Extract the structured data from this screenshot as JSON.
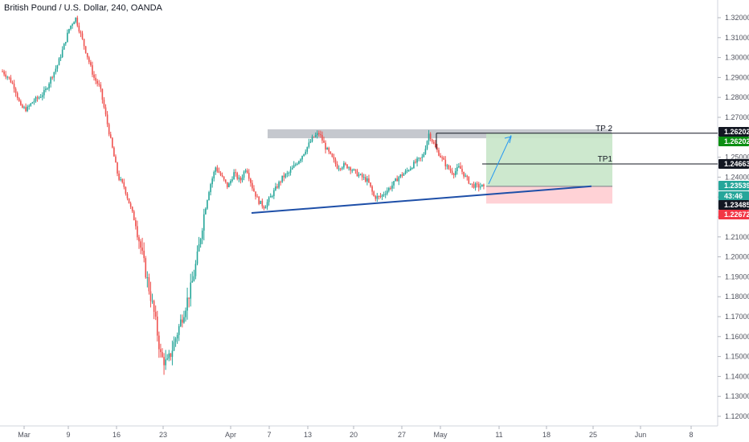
{
  "chart_data": {
    "type": "candlestick",
    "title": "British Pound / U.S. Dollar, 240, OANDA",
    "ylim": [
      1.115,
      1.325
    ],
    "y_ticks": [
      "1.32000",
      "1.31000",
      "1.30000",
      "1.29000",
      "1.28000",
      "1.27000",
      "1.26000",
      "1.25000",
      "1.24000",
      "1.23000",
      "1.22000",
      "1.21000",
      "1.20000",
      "1.19000",
      "1.18000",
      "1.17000",
      "1.16000",
      "1.15000",
      "1.14000",
      "1.13000",
      "1.12000"
    ],
    "x_ticks": [
      "Mar",
      "9",
      "16",
      "23",
      "Apr",
      "7",
      "13",
      "20",
      "27",
      "May",
      "11",
      "18",
      "25",
      "Jun",
      "8"
    ],
    "grid": false,
    "colors": {
      "up": "#26a69a",
      "down": "#ef5350",
      "trendline": "#1e4fa8",
      "resistance_zone": "#b2b5be",
      "target_zone": "#c8e6c9",
      "stop_zone": "#ffcdd2"
    },
    "price_path": [
      [
        1.293,
        1.29
      ],
      [
        1.285,
        1.275
      ],
      [
        1.274,
        1.278
      ],
      [
        1.28,
        1.283
      ],
      [
        1.29,
        1.296
      ],
      [
        1.305,
        1.315
      ],
      [
        1.32,
        1.31
      ],
      [
        1.3,
        1.29
      ],
      [
        1.285,
        1.27
      ],
      [
        1.255,
        1.24
      ],
      [
        1.235,
        1.225
      ],
      [
        1.215,
        1.2
      ],
      [
        1.185,
        1.17
      ],
      [
        1.15,
        1.146
      ],
      [
        1.155,
        1.165
      ],
      [
        1.175,
        1.185
      ],
      [
        1.2,
        1.22
      ],
      [
        1.235,
        1.245
      ],
      [
        1.24,
        1.235
      ],
      [
        1.242,
        1.238
      ],
      [
        1.245,
        1.235
      ],
      [
        1.228,
        1.225
      ],
      [
        1.23,
        1.235
      ],
      [
        1.24,
        1.242
      ],
      [
        1.246,
        1.25
      ],
      [
        1.255,
        1.26
      ],
      [
        1.262,
        1.255
      ],
      [
        1.25,
        1.245
      ],
      [
        1.246,
        1.245
      ],
      [
        1.242,
        1.24
      ],
      [
        1.238,
        1.23
      ],
      [
        1.23,
        1.233
      ],
      [
        1.236,
        1.24
      ],
      [
        1.242,
        1.245
      ],
      [
        1.248,
        1.25
      ],
      [
        1.262,
        1.255
      ],
      [
        1.25,
        1.245
      ],
      [
        1.242,
        1.245
      ],
      [
        1.24,
        1.236
      ],
      [
        1.2354,
        1.2354
      ]
    ],
    "lines": [
      {
        "name": "TP 2",
        "value": 1.26202
      },
      {
        "name": "TP1",
        "value": 1.24663
      }
    ],
    "price_badges": [
      {
        "label": "1.26202",
        "value": 1.26202,
        "color": "#131722"
      },
      {
        "label": "1.26202",
        "value": 1.26202,
        "color": "#0b8f12"
      },
      {
        "label": "1.24663",
        "value": 1.24663,
        "color": "#131722"
      },
      {
        "label": "1.23539",
        "value": 1.23539,
        "color": "#26a69a"
      },
      {
        "label": "43:46",
        "value": 1.23539,
        "color": "#26a69a"
      },
      {
        "label": "1.23485",
        "value": 1.23485,
        "color": "#131722"
      },
      {
        "label": "1.22672",
        "value": 1.22672,
        "color": "#f23645"
      }
    ],
    "zones": {
      "resistance": [
        1.2595,
        1.264
      ],
      "target": [
        1.23539,
        1.26202
      ],
      "stop": [
        1.22672,
        1.23539
      ]
    },
    "trendline": [
      [
        1.222
      ],
      [
        1.2354
      ]
    ]
  }
}
